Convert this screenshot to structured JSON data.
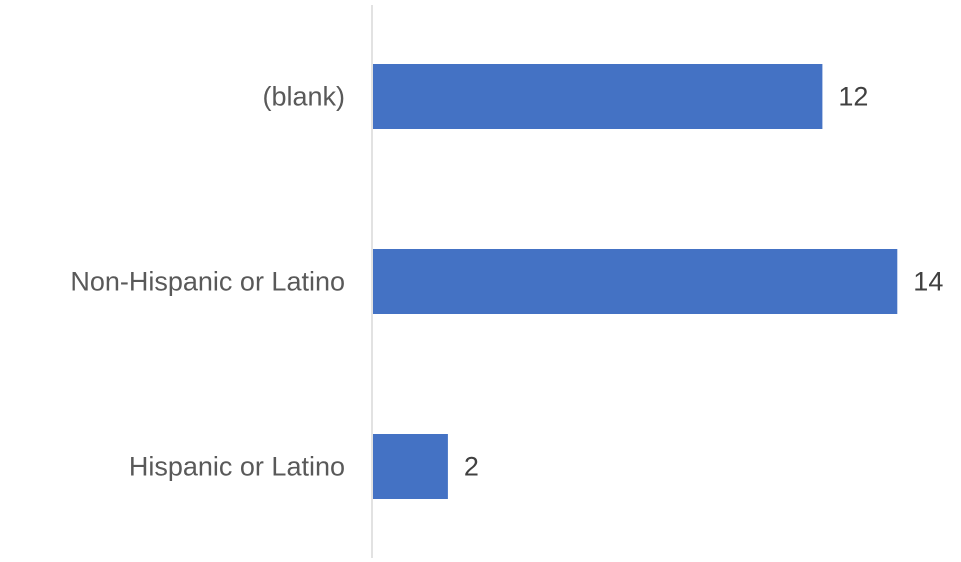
{
  "chart_data": {
    "type": "bar",
    "orientation": "horizontal",
    "categories": [
      "(blank)",
      "Non-Hispanic or Latino",
      "Hispanic or Latino"
    ],
    "values": [
      12,
      14,
      2
    ],
    "title": "",
    "xlabel": "",
    "ylabel": "",
    "xlim": [
      0,
      14
    ],
    "grid": false,
    "legend": "none",
    "data_labels": true,
    "colors": {
      "bar": "#4472C4",
      "axis": "#D9D9D9",
      "category_text": "#595959",
      "value_text": "#404040"
    }
  }
}
